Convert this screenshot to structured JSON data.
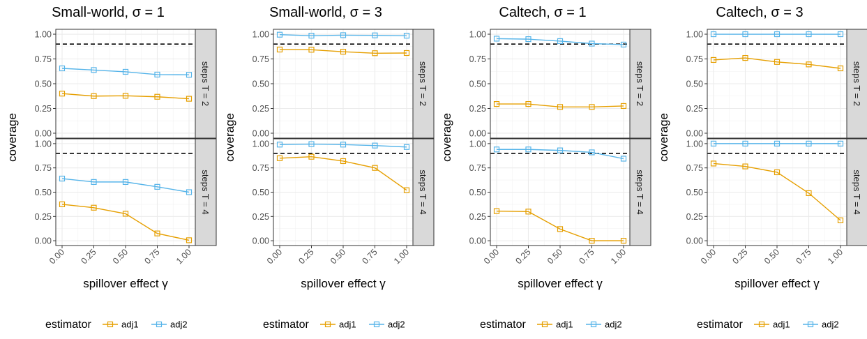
{
  "chart_data": [
    {
      "type": "line",
      "title": "Small-world, σ = 1",
      "ylabel": "coverage",
      "xlabel": "spillover effect γ",
      "x": [
        0,
        0.25,
        0.5,
        0.75,
        1.0
      ],
      "x_tick_labels": [
        "0.00",
        "0.25",
        "0.50",
        "0.75",
        "1.00"
      ],
      "y_tick_labels": [
        "0.00",
        "0.25",
        "0.50",
        "0.75",
        "1.00"
      ],
      "ylim": [
        0,
        1
      ],
      "reference_line": 0.9,
      "grid": true,
      "facets": [
        {
          "strip": "steps T = 2",
          "series": [
            {
              "name": "adj1",
              "values": [
                0.4,
                0.375,
                0.378,
                0.368,
                0.348
              ]
            },
            {
              "name": "adj2",
              "values": [
                0.655,
                0.638,
                0.62,
                0.592,
                0.59
              ]
            }
          ]
        },
        {
          "strip": "steps T = 4",
          "series": [
            {
              "name": "adj1",
              "values": [
                0.375,
                0.34,
                0.278,
                0.075,
                0.005
              ]
            },
            {
              "name": "adj2",
              "values": [
                0.64,
                0.605,
                0.605,
                0.555,
                0.5
              ]
            }
          ]
        }
      ],
      "legend": {
        "title": "estimator",
        "entries": [
          "adj1",
          "adj2"
        ],
        "placement": "bottom"
      }
    },
    {
      "type": "line",
      "title": "Small-world, σ = 3",
      "ylabel": "coverage",
      "xlabel": "spillover effect γ",
      "x": [
        0,
        0.25,
        0.5,
        0.75,
        1.0
      ],
      "x_tick_labels": [
        "0.00",
        "0.25",
        "0.50",
        "0.75",
        "1.00"
      ],
      "y_tick_labels": [
        "0.00",
        "0.25",
        "0.50",
        "0.75",
        "1.00"
      ],
      "ylim": [
        0,
        1
      ],
      "reference_line": 0.9,
      "grid": true,
      "facets": [
        {
          "strip": "steps T = 2",
          "series": [
            {
              "name": "adj1",
              "values": [
                0.845,
                0.843,
                0.823,
                0.808,
                0.81
              ]
            },
            {
              "name": "adj2",
              "values": [
                0.995,
                0.985,
                0.99,
                0.988,
                0.985
              ]
            }
          ]
        },
        {
          "strip": "steps T = 4",
          "series": [
            {
              "name": "adj1",
              "values": [
                0.85,
                0.865,
                0.82,
                0.75,
                0.52
              ]
            },
            {
              "name": "adj2",
              "values": [
                0.99,
                0.995,
                0.99,
                0.98,
                0.965
              ]
            }
          ]
        }
      ],
      "legend": {
        "title": "estimator",
        "entries": [
          "adj1",
          "adj2"
        ],
        "placement": "bottom"
      }
    },
    {
      "type": "line",
      "title": "Caltech, σ = 1",
      "ylabel": "coverage",
      "xlabel": "spillover effect γ",
      "x": [
        0,
        0.25,
        0.5,
        0.75,
        1.0
      ],
      "x_tick_labels": [
        "0.00",
        "0.25",
        "0.50",
        "0.75",
        "1.00"
      ],
      "y_tick_labels": [
        "0.00",
        "0.25",
        "0.50",
        "0.75",
        "1.00"
      ],
      "ylim": [
        0,
        1
      ],
      "reference_line": 0.9,
      "grid": true,
      "facets": [
        {
          "strip": "steps T = 2",
          "series": [
            {
              "name": "adj1",
              "values": [
                0.295,
                0.295,
                0.265,
                0.265,
                0.275
              ]
            },
            {
              "name": "adj2",
              "values": [
                0.955,
                0.95,
                0.93,
                0.905,
                0.895
              ]
            }
          ]
        },
        {
          "strip": "steps T = 4",
          "series": [
            {
              "name": "adj1",
              "values": [
                0.305,
                0.3,
                0.12,
                0.0,
                0.0
              ]
            },
            {
              "name": "adj2",
              "values": [
                0.94,
                0.94,
                0.93,
                0.91,
                0.845
              ]
            }
          ]
        }
      ],
      "legend": {
        "title": "estimator",
        "entries": [
          "adj1",
          "adj2"
        ],
        "placement": "bottom"
      }
    },
    {
      "type": "line",
      "title": "Caltech, σ = 3",
      "ylabel": "coverage",
      "xlabel": "spillover effect γ",
      "x": [
        0,
        0.25,
        0.5,
        0.75,
        1.0
      ],
      "x_tick_labels": [
        "0.00",
        "0.25",
        "0.50",
        "0.75",
        "1.00"
      ],
      "y_tick_labels": [
        "0.00",
        "0.25",
        "0.50",
        "0.75",
        "1.00"
      ],
      "ylim": [
        0,
        1
      ],
      "reference_line": 0.9,
      "grid": true,
      "facets": [
        {
          "strip": "steps T = 2",
          "series": [
            {
              "name": "adj1",
              "values": [
                0.74,
                0.76,
                0.72,
                0.695,
                0.655
              ]
            },
            {
              "name": "adj2",
              "values": [
                1.0,
                1.0,
                1.0,
                1.0,
                1.0
              ]
            }
          ]
        },
        {
          "strip": "steps T = 4",
          "series": [
            {
              "name": "adj1",
              "values": [
                0.795,
                0.765,
                0.705,
                0.49,
                0.21
              ]
            },
            {
              "name": "adj2",
              "values": [
                1.0,
                1.0,
                1.0,
                1.0,
                1.0
              ]
            }
          ]
        }
      ],
      "legend": {
        "title": "estimator",
        "entries": [
          "adj1",
          "adj2"
        ],
        "placement": "bottom"
      }
    }
  ],
  "colors": {
    "adj1": "#E69F00",
    "adj2": "#56B4E9",
    "reference_line": "#000000",
    "strip_fill": "#d9d9d9",
    "panel_border": "#333333",
    "grid": "#ebebeb"
  }
}
